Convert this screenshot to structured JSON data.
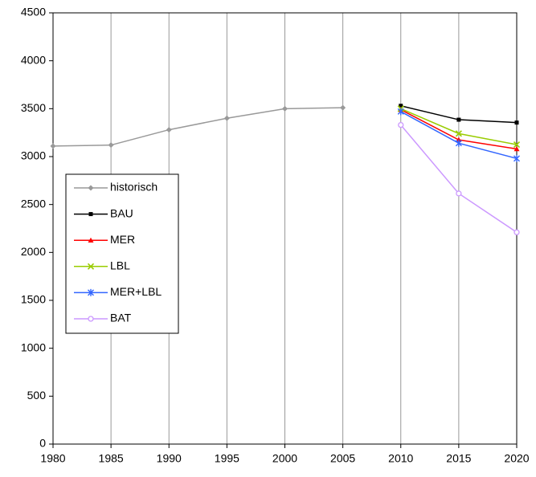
{
  "chart_data": {
    "type": "line",
    "x": [
      1980,
      1985,
      1990,
      1995,
      2000,
      2005,
      2010,
      2015,
      2020
    ],
    "xlim": [
      1980,
      2020
    ],
    "xticks": [
      1980,
      1985,
      1990,
      1995,
      2000,
      2005,
      2010,
      2015,
      2020
    ],
    "ylim": [
      0,
      4500
    ],
    "yticks": [
      0,
      500,
      1000,
      1500,
      2000,
      2500,
      3000,
      3500,
      4000,
      4500
    ],
    "grid": "x",
    "legend": "left",
    "series": [
      {
        "name": "historisch",
        "color": "#999999",
        "marker": "diamond",
        "values": [
          3110,
          3120,
          3280,
          3400,
          3500,
          3510,
          null,
          null,
          null
        ]
      },
      {
        "name": "BAU",
        "color": "#000000",
        "marker": "square",
        "values": [
          null,
          null,
          null,
          null,
          null,
          null,
          3530,
          3385,
          3355
        ]
      },
      {
        "name": "MER",
        "color": "#ff0000",
        "marker": "triangle",
        "values": [
          null,
          null,
          null,
          null,
          null,
          null,
          3490,
          3175,
          3080
        ]
      },
      {
        "name": "LBL",
        "color": "#99cc00",
        "marker": "x",
        "values": [
          null,
          null,
          null,
          null,
          null,
          null,
          3500,
          3240,
          3125
        ]
      },
      {
        "name": "MER+LBL",
        "color": "#3366ff",
        "marker": "star",
        "values": [
          null,
          null,
          null,
          null,
          null,
          null,
          3470,
          3140,
          2980
        ]
      },
      {
        "name": "BAT",
        "color": "#cc99ff",
        "marker": "circle",
        "values": [
          null,
          null,
          null,
          null,
          null,
          null,
          3330,
          2615,
          2210
        ]
      }
    ]
  }
}
